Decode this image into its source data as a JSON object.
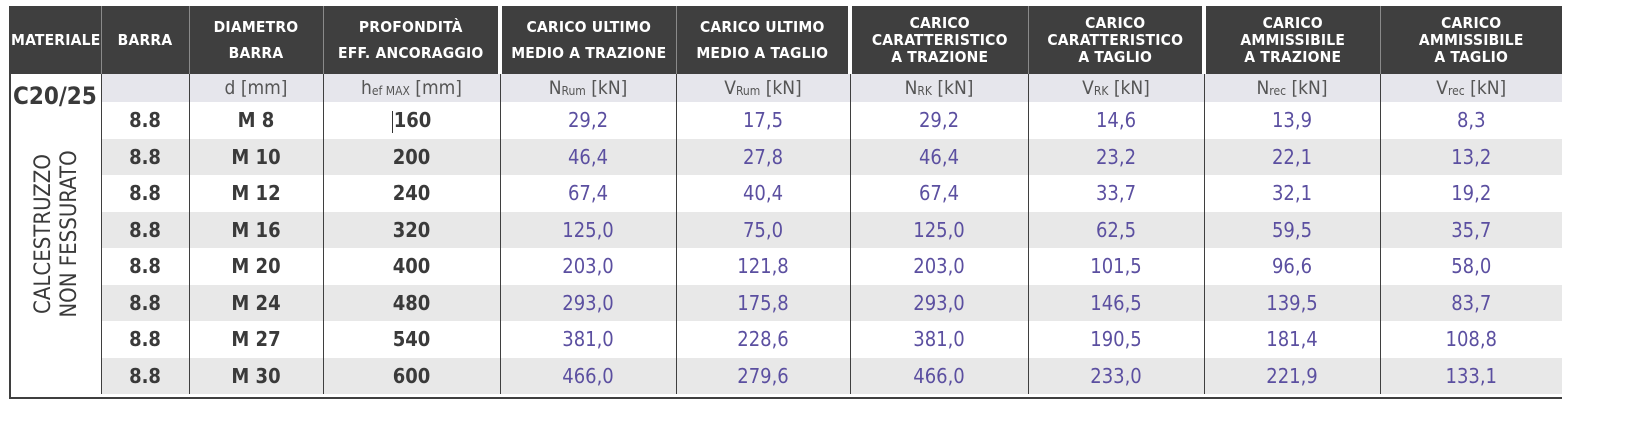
{
  "headers": [
    {
      "lines": [
        "MATERIALE"
      ]
    },
    {
      "lines": [
        "BARRA"
      ]
    },
    {
      "lines": [
        "DIAMETRO",
        "BARRA"
      ]
    },
    {
      "lines": [
        "PROFONDITÀ",
        "EFF. ANCORAGGIO"
      ]
    },
    {
      "lines": [
        "CARICO ULTIMO",
        "MEDIO A TRAZIONE"
      ]
    },
    {
      "lines": [
        "CARICO ULTIMO",
        "MEDIO A TAGLIO"
      ]
    },
    {
      "lines": [
        "CARICO",
        "CARATTERISTICO",
        "A TRAZIONE"
      ]
    },
    {
      "lines": [
        "CARICO",
        "CARATTERISTICO",
        "A TAGLIO"
      ]
    },
    {
      "lines": [
        "CARICO",
        "AMMISSIBILE",
        "A TRAZIONE"
      ]
    },
    {
      "lines": [
        "CARICO",
        "AMMISSIBILE",
        "A TAGLIO"
      ]
    }
  ],
  "units": [
    {
      "sym": "d",
      "sub": "",
      "unit": " [mm]"
    },
    {
      "sym": "h",
      "sub": "ef MAX",
      "unit": " [mm]"
    },
    {
      "sym": "N",
      "sub": "Rum",
      "unit": " [kN]"
    },
    {
      "sym": "V",
      "sub": "Rum",
      "unit": " [kN]"
    },
    {
      "sym": "N",
      "sub": "RK",
      "unit": " [kN]"
    },
    {
      "sym": "V",
      "sub": "RK",
      "unit": " [kN]"
    },
    {
      "sym": "N",
      "sub": "rec",
      "unit": " [kN]"
    },
    {
      "sym": "V",
      "sub": "rec",
      "unit": " [kN]"
    }
  ],
  "material": {
    "code": "C20/25",
    "description": [
      "CALCESTRUZZO",
      "NON FESSURATO"
    ]
  },
  "rows": [
    {
      "barra": "8.8",
      "diametro": "M 8",
      "profondita": "160",
      "n_rum": "29,2",
      "v_rum": "17,5",
      "n_rk": "29,2",
      "v_rk": "14,6",
      "n_rec": "13,9",
      "v_rec": "8,3"
    },
    {
      "barra": "8.8",
      "diametro": "M 10",
      "profondita": "200",
      "n_rum": "46,4",
      "v_rum": "27,8",
      "n_rk": "46,4",
      "v_rk": "23,2",
      "n_rec": "22,1",
      "v_rec": "13,2"
    },
    {
      "barra": "8.8",
      "diametro": "M 12",
      "profondita": "240",
      "n_rum": "67,4",
      "v_rum": "40,4",
      "n_rk": "67,4",
      "v_rk": "33,7",
      "n_rec": "32,1",
      "v_rec": "19,2"
    },
    {
      "barra": "8.8",
      "diametro": "M 16",
      "profondita": "320",
      "n_rum": "125,0",
      "v_rum": "75,0",
      "n_rk": "125,0",
      "v_rk": "62,5",
      "n_rec": "59,5",
      "v_rec": "35,7"
    },
    {
      "barra": "8.8",
      "diametro": "M 20",
      "profondita": "400",
      "n_rum": "203,0",
      "v_rum": "121,8",
      "n_rk": "203,0",
      "v_rk": "101,5",
      "n_rec": "96,6",
      "v_rec": "58,0"
    },
    {
      "barra": "8.8",
      "diametro": "M 24",
      "profondita": "480",
      "n_rum": "293,0",
      "v_rum": "175,8",
      "n_rk": "293,0",
      "v_rk": "146,5",
      "n_rec": "139,5",
      "v_rec": "83,7"
    },
    {
      "barra": "8.8",
      "diametro": "M 27",
      "profondita": "540",
      "n_rum": "381,0",
      "v_rum": "228,6",
      "n_rk": "381,0",
      "v_rk": "190,5",
      "n_rec": "181,4",
      "v_rec": "108,8"
    },
    {
      "barra": "8.8",
      "diametro": "M 30",
      "profondita": "600",
      "n_rum": "466,0",
      "v_rum": "279,6",
      "n_rk": "466,0",
      "v_rk": "233,0",
      "n_rec": "221,9",
      "v_rec": "133,1"
    }
  ],
  "colors": {
    "header_bg": "#3f3f3f",
    "header_text": "#ffffff",
    "value_text": "#5b4fa0",
    "label_text": "#3a3a3a",
    "stripe": "#e8e8e8",
    "units_bg": "#e6e6ec"
  }
}
